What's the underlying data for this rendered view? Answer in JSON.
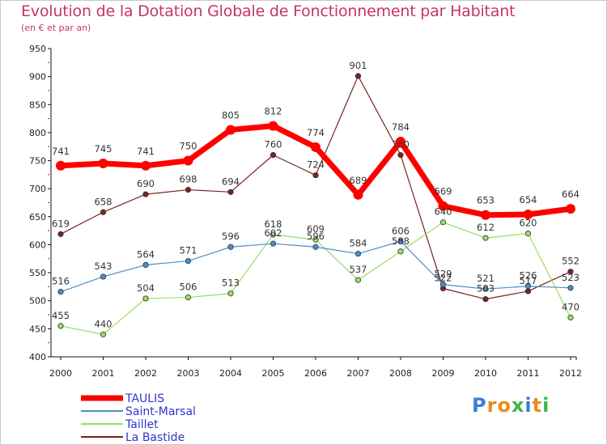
{
  "chart_data": {
    "type": "line",
    "title": "Evolution de la Dotation Globale de Fonctionnement par Habitant",
    "subtitle": "(en € et par an)",
    "xlabel": "",
    "ylabel": "",
    "ylim": [
      400,
      950
    ],
    "yticks": [
      400,
      450,
      500,
      550,
      600,
      650,
      700,
      750,
      800,
      850,
      900,
      950
    ],
    "categories": [
      "2000",
      "2001",
      "2002",
      "2003",
      "2004",
      "2005",
      "2006",
      "2007",
      "2008",
      "2009",
      "2010",
      "2011",
      "2012"
    ],
    "grid": false,
    "legend_position": "bottom-left",
    "series": [
      {
        "name": "TAULIS",
        "color": "#ff0000",
        "values": [
          741,
          745,
          741,
          750,
          805,
          812,
          774,
          689,
          784,
          669,
          653,
          654,
          664
        ]
      },
      {
        "name": "Saint-Marsal",
        "color": "#4a8fcc",
        "values": [
          516,
          543,
          564,
          571,
          596,
          602,
          596,
          584,
          606,
          529,
          521,
          526,
          523
        ]
      },
      {
        "name": "Taillet",
        "color": "#99dd66",
        "values": [
          455,
          440,
          504,
          506,
          513,
          618,
          609,
          537,
          588,
          640,
          612,
          620,
          470
        ]
      },
      {
        "name": "La Bastide",
        "color": "#772222",
        "values": [
          619,
          658,
          690,
          698,
          694,
          760,
          724,
          901,
          760,
          522,
          503,
          517,
          552
        ]
      }
    ]
  },
  "logo": {
    "letters": [
      {
        "ch": "P",
        "color": "#3b7dd8"
      },
      {
        "ch": "r",
        "color": "#e98b1f"
      },
      {
        "ch": "o",
        "color": "#e98b1f"
      },
      {
        "ch": "x",
        "color": "#3bb54a"
      },
      {
        "ch": "i",
        "color": "#3b7dd8"
      },
      {
        "ch": "t",
        "color": "#e98b1f"
      },
      {
        "ch": "i",
        "color": "#3bb54a"
      }
    ]
  }
}
